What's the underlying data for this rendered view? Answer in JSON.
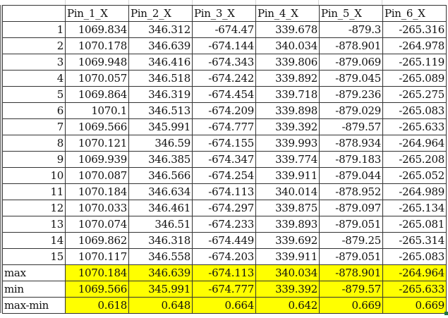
{
  "columns": [
    "",
    "Pin_1_X",
    "Pin_2_X",
    "Pin_3_X",
    "Pin_4_X",
    "Pin_5_X",
    "Pin_6_X"
  ],
  "rows": [
    [
      "1",
      "1069.834",
      "346.312",
      "-674.47",
      "339.678",
      "-879.3",
      "-265.316"
    ],
    [
      "2",
      "1070.178",
      "346.639",
      "-674.144",
      "340.034",
      "-878.901",
      "-264.978"
    ],
    [
      "3",
      "1069.948",
      "346.416",
      "-674.343",
      "339.806",
      "-879.069",
      "-265.119"
    ],
    [
      "4",
      "1070.057",
      "346.518",
      "-674.242",
      "339.892",
      "-879.045",
      "-265.089"
    ],
    [
      "5",
      "1069.864",
      "346.319",
      "-674.454",
      "339.718",
      "-879.236",
      "-265.275"
    ],
    [
      "6",
      "1070.1",
      "346.513",
      "-674.209",
      "339.898",
      "-879.029",
      "-265.083"
    ],
    [
      "7",
      "1069.566",
      "345.991",
      "-674.777",
      "339.392",
      "-879.57",
      "-265.633"
    ],
    [
      "8",
      "1070.121",
      "346.59",
      "-674.155",
      "339.993",
      "-878.934",
      "-264.964"
    ],
    [
      "9",
      "1069.939",
      "346.385",
      "-674.347",
      "339.774",
      "-879.183",
      "-265.208"
    ],
    [
      "10",
      "1070.087",
      "346.566",
      "-674.254",
      "339.911",
      "-879.044",
      "-265.052"
    ],
    [
      "11",
      "1070.184",
      "346.634",
      "-674.113",
      "340.014",
      "-878.952",
      "-264.989"
    ],
    [
      "12",
      "1070.033",
      "346.461",
      "-674.297",
      "339.875",
      "-879.097",
      "-265.134"
    ],
    [
      "13",
      "1070.074",
      "346.51",
      "-674.233",
      "339.893",
      "-879.051",
      "-265.081"
    ],
    [
      "14",
      "1069.862",
      "346.318",
      "-674.449",
      "339.692",
      "-879.25",
      "-265.314"
    ],
    [
      "15",
      "1070.117",
      "346.558",
      "-674.203",
      "339.911",
      "-879.051",
      "-265.083"
    ]
  ],
  "stats": [
    [
      "max",
      "1070.184",
      "346.639",
      "-674.113",
      "340.034",
      "-878.901",
      "-264.964"
    ],
    [
      "min",
      "1069.566",
      "345.991",
      "-674.777",
      "339.392",
      "-879.57",
      "-265.633"
    ],
    [
      "max-min",
      "0.618",
      "0.648",
      "0.664",
      "0.642",
      "0.669",
      "0.669"
    ]
  ],
  "colors": {
    "highlight": "#ffff00",
    "border": "#333333"
  }
}
